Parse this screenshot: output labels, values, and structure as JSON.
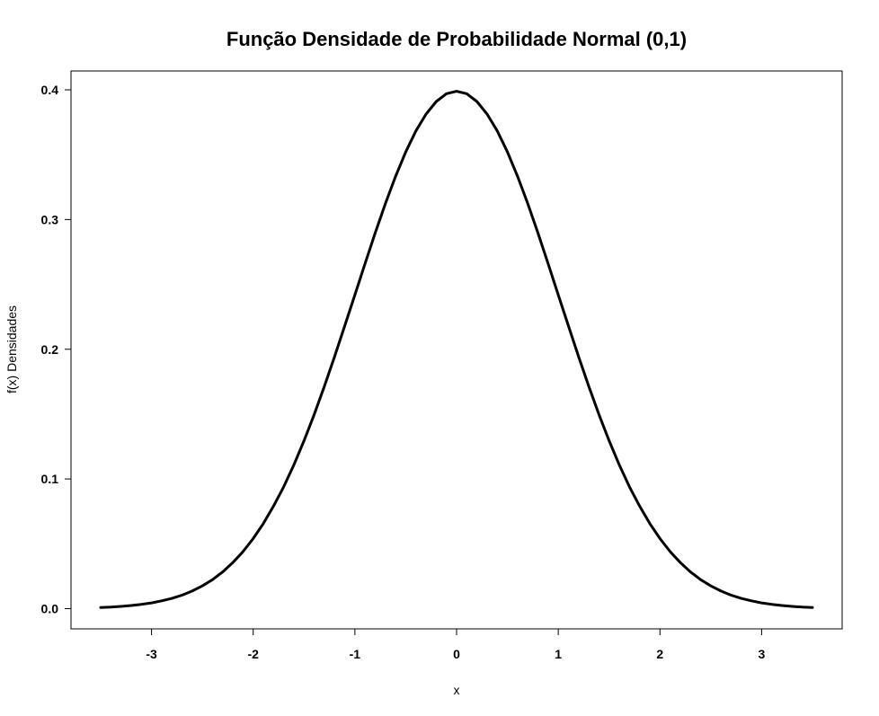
{
  "chart_data": {
    "type": "line",
    "title": "Função Densidade de Probabilidade Normal (0,1)",
    "xlabel": "x",
    "ylabel": "f(x) Densidades",
    "xlim": [
      -3.5,
      3.5
    ],
    "ylim": [
      0.0,
      0.4
    ],
    "x_ticks": [
      -3,
      -2,
      -1,
      0,
      1,
      2,
      3
    ],
    "x_tick_labels": [
      "-3",
      "-2",
      "-1",
      "0",
      "1",
      "2",
      "3"
    ],
    "y_ticks": [
      0.0,
      0.1,
      0.2,
      0.3,
      0.4
    ],
    "y_tick_labels": [
      "0.0",
      "0.1",
      "0.2",
      "0.3",
      "0.4"
    ],
    "grid": false,
    "legend": "none",
    "line_color": "#000000",
    "series": [
      {
        "x": [
          -3.5,
          -3.4,
          -3.3,
          -3.2,
          -3.1,
          -3.0,
          -2.9,
          -2.8,
          -2.7,
          -2.6,
          -2.5,
          -2.4,
          -2.3,
          -2.2,
          -2.1,
          -2.0,
          -1.9,
          -1.8,
          -1.7,
          -1.6,
          -1.5,
          -1.4,
          -1.3,
          -1.2,
          -1.1,
          -1.0,
          -0.9,
          -0.8,
          -0.7,
          -0.6,
          -0.5,
          -0.4,
          -0.3,
          -0.2,
          -0.1,
          0.0,
          0.1,
          0.2,
          0.3,
          0.4,
          0.5,
          0.6,
          0.7,
          0.8,
          0.9,
          1.0,
          1.1,
          1.2,
          1.3,
          1.4,
          1.5,
          1.6,
          1.7,
          1.8,
          1.9,
          2.0,
          2.1,
          2.2,
          2.3,
          2.4,
          2.5,
          2.6,
          2.7,
          2.8,
          2.9,
          3.0,
          3.1,
          3.2,
          3.3,
          3.4,
          3.5
        ],
        "y": [
          0.0009,
          0.0012,
          0.0017,
          0.0024,
          0.0033,
          0.0044,
          0.006,
          0.0079,
          0.0104,
          0.0136,
          0.0175,
          0.0224,
          0.0283,
          0.0355,
          0.044,
          0.054,
          0.0656,
          0.079,
          0.094,
          0.1109,
          0.1295,
          0.1497,
          0.1714,
          0.1942,
          0.2179,
          0.242,
          0.2661,
          0.2897,
          0.3123,
          0.3332,
          0.3521,
          0.3683,
          0.3814,
          0.391,
          0.397,
          0.3989,
          0.397,
          0.391,
          0.3814,
          0.3683,
          0.3521,
          0.3332,
          0.3123,
          0.2897,
          0.2661,
          0.242,
          0.2179,
          0.1942,
          0.1714,
          0.1497,
          0.1295,
          0.1109,
          0.094,
          0.079,
          0.0656,
          0.054,
          0.044,
          0.0355,
          0.0283,
          0.0224,
          0.0175,
          0.0136,
          0.0104,
          0.0079,
          0.006,
          0.0044,
          0.0033,
          0.0024,
          0.0017,
          0.0012,
          0.0009
        ]
      }
    ]
  }
}
